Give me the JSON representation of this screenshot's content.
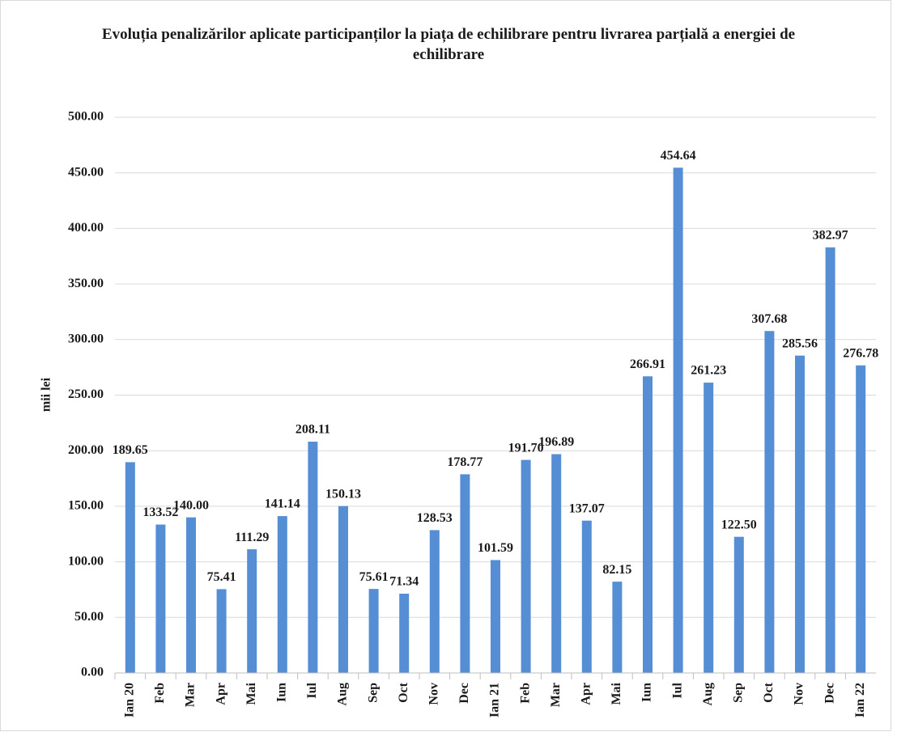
{
  "chart_data": {
    "type": "bar",
    "title": "Evoluția penalizărilor aplicate participanților la piața de echilibrare  pentru livrarea parțială a energiei de echilibrare",
    "y_label": "mii lei",
    "categories": [
      "Ian 20",
      "Feb",
      "Mar",
      "Apr",
      "Mai",
      "Iun",
      "Iul",
      "Aug",
      "Sep",
      "Oct",
      "Nov",
      "Dec",
      "Ian 21",
      "Feb",
      "Mar",
      "Apr",
      "Mai",
      "Iun",
      "Iul",
      "Aug",
      "Sep",
      "Oct",
      "Nov",
      "Dec",
      "Ian 22"
    ],
    "values": [
      189.65,
      133.52,
      140.0,
      75.41,
      111.29,
      141.14,
      208.11,
      150.13,
      75.61,
      71.34,
      128.53,
      178.77,
      101.59,
      191.7,
      196.89,
      137.07,
      82.15,
      266.91,
      454.64,
      261.23,
      122.5,
      307.68,
      285.56,
      382.97,
      276.78
    ],
    "value_labels": [
      "189.65",
      "133.52",
      "140.00",
      "75.41",
      "111.29",
      "141.14",
      "208.11",
      "150.13",
      "75.61",
      "71.34",
      "128.53",
      "178.77",
      "101.59",
      "191.70",
      "196.89",
      "137.07",
      "82.15",
      "266.91",
      "454.64",
      "261.23",
      "122.50",
      "307.68",
      "285.56",
      "382.97",
      "276.78"
    ],
    "color": "#558ed5",
    "ylim": [
      0,
      500
    ],
    "yticks": [
      {
        "value": 0,
        "label": "0.00"
      },
      {
        "value": 50,
        "label": "50.00"
      },
      {
        "value": 100,
        "label": "100.00"
      },
      {
        "value": 150,
        "label": "150.00"
      },
      {
        "value": 200,
        "label": "200.00"
      },
      {
        "value": 250,
        "label": "250.00"
      },
      {
        "value": 300,
        "label": "300.00"
      },
      {
        "value": 350,
        "label": "350.00"
      },
      {
        "value": 400,
        "label": "400.00"
      },
      {
        "value": 450,
        "label": "450.00"
      },
      {
        "value": 500,
        "label": "500.00"
      }
    ],
    "grid": true
  }
}
